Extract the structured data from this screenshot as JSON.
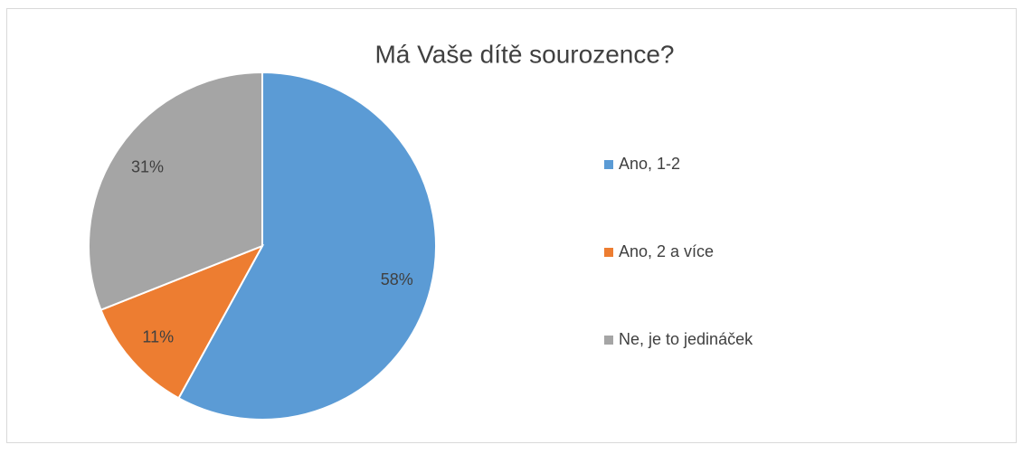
{
  "chart_data": {
    "type": "pie",
    "title": "Má Vaše dítě sourozence?",
    "categories": [
      "Ano, 1-2",
      "Ano, 2 a více",
      "Ne, je to jedináček"
    ],
    "values": [
      58,
      11,
      31
    ],
    "value_labels": [
      "58%",
      "11%",
      "31%"
    ],
    "colors": [
      "#5b9bd5",
      "#ed7d31",
      "#a5a5a5"
    ],
    "legend": "right"
  }
}
